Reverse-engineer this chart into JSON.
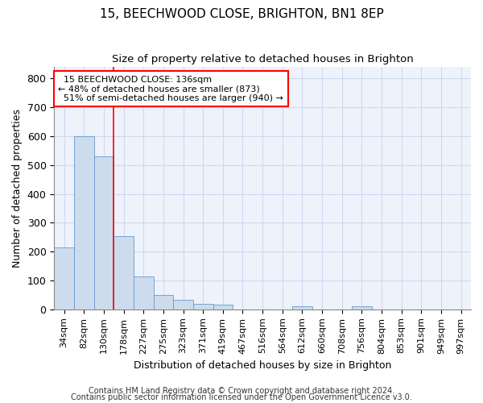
{
  "title": "15, BEECHWOOD CLOSE, BRIGHTON, BN1 8EP",
  "subtitle": "Size of property relative to detached houses in Brighton",
  "xlabel": "Distribution of detached houses by size in Brighton",
  "ylabel": "Number of detached properties",
  "bar_color": "#cddcec",
  "bar_edge_color": "#6699cc",
  "background_color": "#eef2fb",
  "grid_color": "#d0d8f0",
  "categories": [
    "34sqm",
    "82sqm",
    "130sqm",
    "178sqm",
    "227sqm",
    "275sqm",
    "323sqm",
    "371sqm",
    "419sqm",
    "467sqm",
    "516sqm",
    "564sqm",
    "612sqm",
    "660sqm",
    "708sqm",
    "756sqm",
    "804sqm",
    "853sqm",
    "901sqm",
    "949sqm",
    "997sqm"
  ],
  "values": [
    215,
    600,
    530,
    255,
    115,
    50,
    33,
    20,
    15,
    0,
    0,
    0,
    10,
    0,
    0,
    10,
    0,
    0,
    0,
    0,
    0
  ],
  "property_label": "15 BEECHWOOD CLOSE: 136sqm",
  "pct_smaller": "48% of detached houses are smaller (873)",
  "pct_larger": "51% of semi-detached houses are larger (940)",
  "red_line_x": 2.5,
  "ylim": [
    0,
    840
  ],
  "yticks": [
    0,
    100,
    200,
    300,
    400,
    500,
    600,
    700,
    800
  ],
  "footnote1": "Contains HM Land Registry data © Crown copyright and database right 2024.",
  "footnote2": "Contains public sector information licensed under the Open Government Licence v3.0."
}
